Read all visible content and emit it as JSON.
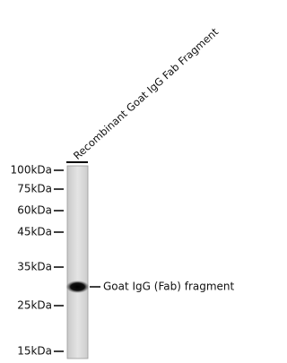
{
  "lane_label": "Recombinant Goat IgG Fab Fragment",
  "markers": [
    "100kDa",
    "75kDa",
    "60kDa",
    "45kDa",
    "35kDa",
    "25kDa",
    "15kDa"
  ],
  "band_label": "Goat IgG (Fab) fragment"
}
